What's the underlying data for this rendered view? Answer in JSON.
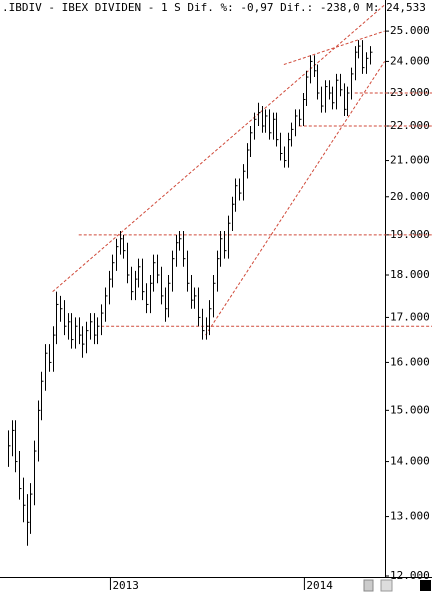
{
  "chart_data": {
    "type": "hlc",
    "title": ".IBDIV - IBEX DIVIDEN -  1 S Dif. %: -0,97 Dif.: -238,0 M: 24,533",
    "categories": [
      null,
      null,
      null,
      null,
      null,
      null,
      null,
      null,
      null,
      null,
      null,
      null,
      null,
      null,
      null,
      null,
      null,
      null,
      null,
      null,
      null,
      null,
      null,
      null,
      null,
      null,
      null,
      null,
      "2013",
      null,
      null,
      null,
      null,
      null,
      null,
      null,
      null,
      null,
      null,
      null,
      null,
      null,
      null,
      null,
      null,
      null,
      null,
      null,
      null,
      null,
      null,
      null,
      null,
      null,
      null,
      null,
      null,
      null,
      null,
      null,
      null,
      null,
      null,
      null,
      null,
      null,
      null,
      null,
      null,
      null,
      null,
      null,
      null,
      null,
      null,
      null,
      null,
      null,
      null,
      null,
      "2014",
      null,
      null,
      null,
      null,
      null,
      null,
      null,
      null,
      null,
      null,
      null,
      null,
      null,
      null,
      null,
      null,
      null
    ],
    "high": [
      14.6,
      14.8,
      14.8,
      14.2,
      13.7,
      13.4,
      13.6,
      14.4,
      15.2,
      15.8,
      16.4,
      16.4,
      16.8,
      17.6,
      17.5,
      17.4,
      17.1,
      17.1,
      17.0,
      17.0,
      16.8,
      16.9,
      17.1,
      17.1,
      17.0,
      17.3,
      17.7,
      18.1,
      18.5,
      18.9,
      19.1,
      19.0,
      18.8,
      18.2,
      18.1,
      18.4,
      18.4,
      17.8,
      18.0,
      18.5,
      18.5,
      18.2,
      17.7,
      18.0,
      18.6,
      19.0,
      19.1,
      19.1,
      18.6,
      18.0,
      17.7,
      17.7,
      17.2,
      17.0,
      17.4,
      18.0,
      18.6,
      19.1,
      19.1,
      19.5,
      20.0,
      20.5,
      20.5,
      20.9,
      21.5,
      22.0,
      22.4,
      22.7,
      22.6,
      22.5,
      22.5,
      22.4,
      22.4,
      21.8,
      21.4,
      21.8,
      22.1,
      22.5,
      22.5,
      23.0,
      23.7,
      24.2,
      24.2,
      23.9,
      23.2,
      23.4,
      23.4,
      23.2,
      23.6,
      23.6,
      23.3,
      23.2,
      23.8,
      24.5,
      24.7,
      24.7,
      24.3,
      24.5
    ],
    "low": [
      13.9,
      14.1,
      13.8,
      13.3,
      12.9,
      12.5,
      12.7,
      13.2,
      14.0,
      14.8,
      15.4,
      15.8,
      15.8,
      16.4,
      16.9,
      16.6,
      16.5,
      16.3,
      16.3,
      16.4,
      16.1,
      16.2,
      16.5,
      16.4,
      16.4,
      16.6,
      16.9,
      17.3,
      17.7,
      18.1,
      18.5,
      18.4,
      17.8,
      17.4,
      17.4,
      17.7,
      17.4,
      17.1,
      17.1,
      17.6,
      17.8,
      17.3,
      16.9,
      17.0,
      17.6,
      18.2,
      18.6,
      18.2,
      17.6,
      17.2,
      17.2,
      16.8,
      16.5,
      16.5,
      16.6,
      17.0,
      17.6,
      18.2,
      18.4,
      18.4,
      19.1,
      19.6,
      19.9,
      19.9,
      20.5,
      21.1,
      21.6,
      22.0,
      21.8,
      21.8,
      21.6,
      21.6,
      21.4,
      21.0,
      20.8,
      20.8,
      21.4,
      21.7,
      22.0,
      22.0,
      22.6,
      23.3,
      23.5,
      22.8,
      22.4,
      22.4,
      22.8,
      22.5,
      22.5,
      22.9,
      22.3,
      22.3,
      22.8,
      23.4,
      24.1,
      23.6,
      23.6,
      23.9
    ],
    "close": [
      14.3,
      14.6,
      14.0,
      13.5,
      13.2,
      12.9,
      13.4,
      14.2,
      15.0,
      15.6,
      16.2,
      16.0,
      16.6,
      17.3,
      17.2,
      16.8,
      16.9,
      16.5,
      16.8,
      16.6,
      16.4,
      16.7,
      16.9,
      16.6,
      16.8,
      17.1,
      17.5,
      17.9,
      18.3,
      18.7,
      18.9,
      18.6,
      18.0,
      17.6,
      17.9,
      18.2,
      17.6,
      17.3,
      17.8,
      18.3,
      18.0,
      17.5,
      17.2,
      17.8,
      18.4,
      18.8,
      18.9,
      18.4,
      17.8,
      17.4,
      17.5,
      17.0,
      16.7,
      16.8,
      17.2,
      17.8,
      18.4,
      18.9,
      18.6,
      19.3,
      19.8,
      20.3,
      20.1,
      20.7,
      21.3,
      21.8,
      22.2,
      22.4,
      22.0,
      22.3,
      21.8,
      22.2,
      21.6,
      21.2,
      21.0,
      21.6,
      21.9,
      22.3,
      22.2,
      22.8,
      23.5,
      24.0,
      23.7,
      23.0,
      22.6,
      23.2,
      23.0,
      22.7,
      23.4,
      23.1,
      22.5,
      23.0,
      23.6,
      24.3,
      24.5,
      23.8,
      24.1,
      24.3
    ],
    "color": "#000000",
    "log_scale": true,
    "ylim": [
      12,
      26.07
    ],
    "yticks": [
      {
        "value": 12,
        "label": "12.000"
      },
      {
        "value": 13,
        "label": "13.000"
      },
      {
        "value": 14,
        "label": "14.000"
      },
      {
        "value": 15,
        "label": "15.000"
      },
      {
        "value": 16,
        "label": "16.000"
      },
      {
        "value": 17,
        "label": "17.000"
      },
      {
        "value": 18,
        "label": "18.000"
      },
      {
        "value": 19,
        "label": "19.000"
      },
      {
        "value": 20,
        "label": "20.000"
      },
      {
        "value": 21,
        "label": "21.000"
      },
      {
        "value": 22,
        "label": "22.000"
      },
      {
        "value": 23,
        "label": "23.000"
      },
      {
        "value": 24,
        "label": "24.000"
      },
      {
        "value": 25,
        "label": "25.000"
      }
    ],
    "annotation_color": "#d04a3a",
    "hlines": [
      {
        "value": 19.0,
        "from": 19
      },
      {
        "value": 16.8,
        "from": 25
      },
      {
        "value": 23.0,
        "from": 93
      },
      {
        "value": 22.0,
        "from": 78
      }
    ],
    "trendlines": [
      {
        "from": [
          12,
          17.6
        ],
        "to": [
          101,
          25.9
        ]
      },
      {
        "from": [
          53,
          16.6
        ],
        "to": [
          101,
          24.0
        ]
      },
      {
        "from": [
          74,
          23.9
        ],
        "to": [
          101,
          25.0
        ]
      }
    ]
  }
}
